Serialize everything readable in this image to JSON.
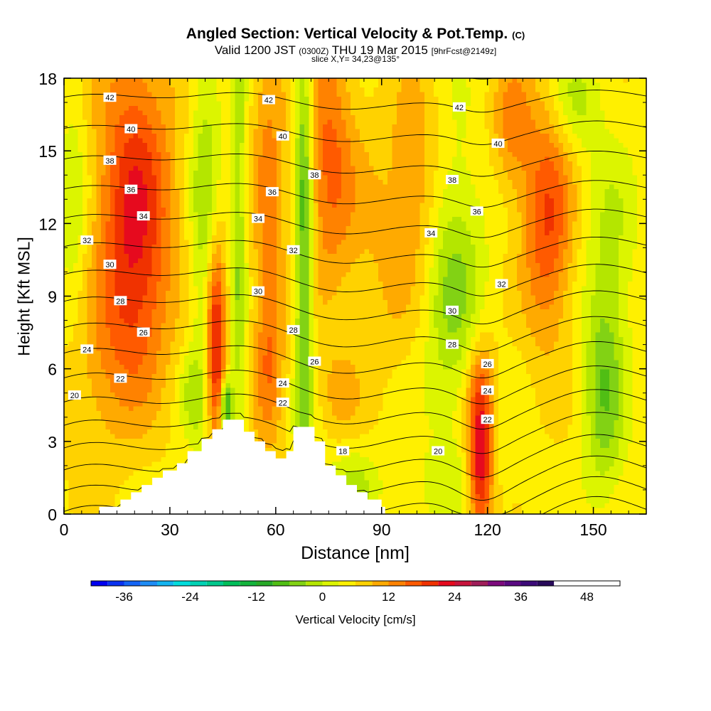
{
  "title": {
    "main": "Angled Section: Vertical Velocity & Pot.Temp.",
    "unit": "(C)",
    "valid_prefix": "Valid 1200 JST",
    "valid_zulu": "(0300Z)",
    "valid_date": "THU 19 Mar 2015",
    "forecast": "[9hrFcst@2149z]",
    "slice": "slice X,Y= 34,23@135°"
  },
  "colorbar": {
    "label": "Vertical Velocity [cm/s]",
    "ticks": [
      "-36",
      "-24",
      "-12",
      "0",
      "12",
      "24",
      "36",
      "48"
    ],
    "bins": [
      -42,
      -39,
      -36,
      -33,
      -30,
      -27,
      -24,
      -21,
      -18,
      -15,
      -12,
      -9,
      -6,
      -3,
      0,
      3,
      6,
      9,
      12,
      15,
      18,
      21,
      24,
      27,
      30,
      33,
      36,
      39,
      42,
      45,
      48,
      51,
      54
    ],
    "colors": [
      "#0000f0",
      "#0a32f0",
      "#1464f5",
      "#1e8cf5",
      "#14b4f0",
      "#00dcdc",
      "#00d2b4",
      "#00c88c",
      "#00be5a",
      "#14b43c",
      "#28aa28",
      "#50be14",
      "#82d214",
      "#b4e600",
      "#dcf500",
      "#fff000",
      "#ffd200",
      "#ffaa00",
      "#ff8200",
      "#ff5a00",
      "#f03200",
      "#e60a1e",
      "#c8143c",
      "#a01e5a",
      "#7d0a7d",
      "#5a0a82",
      "#3c0a78",
      "#280a5a"
    ]
  },
  "chart_data": {
    "type": "heatmap",
    "title": "Angled Section: Vertical Velocity & Pot.Temp. (C)",
    "xlabel": "Distance [nm]",
    "ylabel": "Height [Kft MSL]",
    "xlim": [
      0,
      165
    ],
    "ylim": [
      0,
      18
    ],
    "xticks": [
      "0",
      "30",
      "60",
      "90",
      "120",
      "150"
    ],
    "yticks": [
      "0",
      "3",
      "6",
      "9",
      "12",
      "15",
      "18"
    ],
    "fill_variable": "Vertical Velocity [cm/s]",
    "grid": false,
    "anomalies": [
      {
        "x": 20,
        "y": 13.5,
        "sx": 8,
        "sy": 4.5,
        "w": 14
      },
      {
        "x": 20,
        "y": 8.5,
        "sx": 7,
        "sy": 3,
        "w": 7
      },
      {
        "x": 8,
        "y": 5,
        "sx": 8,
        "sy": 2.5,
        "w": 4
      },
      {
        "x": 3,
        "y": 12.5,
        "sx": 3,
        "sy": 4,
        "w": -5
      },
      {
        "x": 40,
        "y": 12,
        "sx": 3,
        "sy": 6,
        "w": -8
      },
      {
        "x": 36,
        "y": 5,
        "sx": 2.5,
        "sy": 1.2,
        "w": -5
      },
      {
        "x": 43,
        "y": 7,
        "sx": 2,
        "sy": 3,
        "w": 20
      },
      {
        "x": 46,
        "y": 4.5,
        "sx": 1.2,
        "sy": 0.8,
        "w": -18
      },
      {
        "x": 49.5,
        "y": 12,
        "sx": 1.5,
        "sy": 8,
        "w": -8
      },
      {
        "x": 58,
        "y": 14,
        "sx": 3.5,
        "sy": 5,
        "w": 8
      },
      {
        "x": 58,
        "y": 6,
        "sx": 3,
        "sy": 2.5,
        "w": 8
      },
      {
        "x": 68,
        "y": 12,
        "sx": 1.8,
        "sy": 8,
        "w": -14
      },
      {
        "x": 75,
        "y": 15,
        "sx": 5,
        "sy": 4,
        "w": 10
      },
      {
        "x": 78,
        "y": 5,
        "sx": 4,
        "sy": 1.2,
        "w": 4
      },
      {
        "x": 82,
        "y": 1.2,
        "sx": 5,
        "sy": 1,
        "w": -6
      },
      {
        "x": 90,
        "y": 11,
        "sx": 10,
        "sy": 4,
        "w": 4
      },
      {
        "x": 100,
        "y": 14,
        "sx": 5,
        "sy": 3,
        "w": 6
      },
      {
        "x": 110,
        "y": 9.5,
        "sx": 6,
        "sy": 4,
        "w": -9
      },
      {
        "x": 109,
        "y": 1,
        "sx": 10,
        "sy": 1.2,
        "w": -3
      },
      {
        "x": 118,
        "y": 2.2,
        "sx": 2.5,
        "sy": 2.3,
        "w": 20
      },
      {
        "x": 118,
        "y": 5.5,
        "sx": 3,
        "sy": 1.5,
        "w": 6
      },
      {
        "x": 127,
        "y": 16,
        "sx": 4,
        "sy": 2,
        "w": 8
      },
      {
        "x": 137,
        "y": 12,
        "sx": 5,
        "sy": 3.5,
        "w": 13
      },
      {
        "x": 145,
        "y": 17,
        "sx": 5,
        "sy": 1.5,
        "w": -6
      },
      {
        "x": 153,
        "y": 5,
        "sx": 4,
        "sy": 3,
        "w": -10
      },
      {
        "x": 155,
        "y": 11,
        "sx": 5,
        "sy": 3,
        "w": -5
      }
    ],
    "terrain": [
      [
        0,
        0
      ],
      [
        10,
        0
      ],
      [
        10,
        0.3
      ],
      [
        16,
        0.3
      ],
      [
        16,
        0.6
      ],
      [
        19,
        0.6
      ],
      [
        19,
        0.9
      ],
      [
        22,
        0.9
      ],
      [
        22,
        1.2
      ],
      [
        25,
        1.2
      ],
      [
        25,
        1.5
      ],
      [
        28,
        1.5
      ],
      [
        28,
        1.8
      ],
      [
        32,
        1.8
      ],
      [
        32,
        2.1
      ],
      [
        35,
        2.1
      ],
      [
        35,
        2.6
      ],
      [
        39,
        2.6
      ],
      [
        39,
        3.1
      ],
      [
        42,
        3.1
      ],
      [
        42,
        3.5
      ],
      [
        45,
        3.5
      ],
      [
        45,
        3.9
      ],
      [
        51,
        3.9
      ],
      [
        51,
        3.4
      ],
      [
        54,
        3.4
      ],
      [
        54,
        3.0
      ],
      [
        57,
        3.0
      ],
      [
        57,
        2.6
      ],
      [
        60,
        2.6
      ],
      [
        60,
        2.3
      ],
      [
        63,
        2.3
      ],
      [
        63,
        2.6
      ],
      [
        65,
        2.6
      ],
      [
        65,
        3.6
      ],
      [
        71,
        3.6
      ],
      [
        71,
        3.0
      ],
      [
        74,
        3.0
      ],
      [
        74,
        2.0
      ],
      [
        77,
        2.0
      ],
      [
        77,
        1.6
      ],
      [
        80,
        1.6
      ],
      [
        80,
        1.2
      ],
      [
        83,
        1.2
      ],
      [
        83,
        0.9
      ],
      [
        86,
        0.9
      ],
      [
        86,
        0.6
      ],
      [
        90,
        0.6
      ],
      [
        90,
        0.3
      ],
      [
        91,
        0.3
      ],
      [
        91,
        0
      ],
      [
        165,
        0
      ]
    ],
    "isentrope_params": {
      "a": 0.84,
      "b": 0.3,
      "theta0": 17,
      "theta1": 43,
      "step": 1
    },
    "isentrope_labels": [
      {
        "text": "42",
        "x": 13,
        "y": 17.2
      },
      {
        "text": "40",
        "x": 19,
        "y": 15.9
      },
      {
        "text": "38",
        "x": 13,
        "y": 14.6
      },
      {
        "text": "36",
        "x": 19,
        "y": 13.4
      },
      {
        "text": "34",
        "x": 22.5,
        "y": 12.3
      },
      {
        "text": "32",
        "x": 6.5,
        "y": 11.3
      },
      {
        "text": "30",
        "x": 13,
        "y": 10.3
      },
      {
        "text": "28",
        "x": 16,
        "y": 8.8
      },
      {
        "text": "26",
        "x": 22.5,
        "y": 7.5
      },
      {
        "text": "24",
        "x": 6.5,
        "y": 6.8
      },
      {
        "text": "22",
        "x": 16,
        "y": 5.6
      },
      {
        "text": "20",
        "x": 3,
        "y": 4.9
      },
      {
        "text": "42",
        "x": 58,
        "y": 17.1
      },
      {
        "text": "40",
        "x": 62,
        "y": 15.6
      },
      {
        "text": "38",
        "x": 71,
        "y": 14.0
      },
      {
        "text": "36",
        "x": 59,
        "y": 13.3
      },
      {
        "text": "34",
        "x": 55,
        "y": 12.2
      },
      {
        "text": "32",
        "x": 65,
        "y": 10.9
      },
      {
        "text": "30",
        "x": 55,
        "y": 9.2
      },
      {
        "text": "28",
        "x": 65,
        "y": 7.6
      },
      {
        "text": "26",
        "x": 71,
        "y": 6.3
      },
      {
        "text": "24",
        "x": 62,
        "y": 5.4
      },
      {
        "text": "22",
        "x": 62,
        "y": 4.6
      },
      {
        "text": "18",
        "x": 79,
        "y": 2.6
      },
      {
        "text": "42",
        "x": 112,
        "y": 16.8
      },
      {
        "text": "40",
        "x": 123,
        "y": 15.3
      },
      {
        "text": "38",
        "x": 110,
        "y": 13.8
      },
      {
        "text": "36",
        "x": 117,
        "y": 12.5
      },
      {
        "text": "34",
        "x": 104,
        "y": 11.6
      },
      {
        "text": "32",
        "x": 124,
        "y": 9.5
      },
      {
        "text": "30",
        "x": 110,
        "y": 8.4
      },
      {
        "text": "28",
        "x": 110,
        "y": 7.0
      },
      {
        "text": "26",
        "x": 120,
        "y": 6.2
      },
      {
        "text": "24",
        "x": 120,
        "y": 5.1
      },
      {
        "text": "22",
        "x": 120,
        "y": 3.9
      },
      {
        "text": "20",
        "x": 106,
        "y": 2.6
      }
    ]
  }
}
